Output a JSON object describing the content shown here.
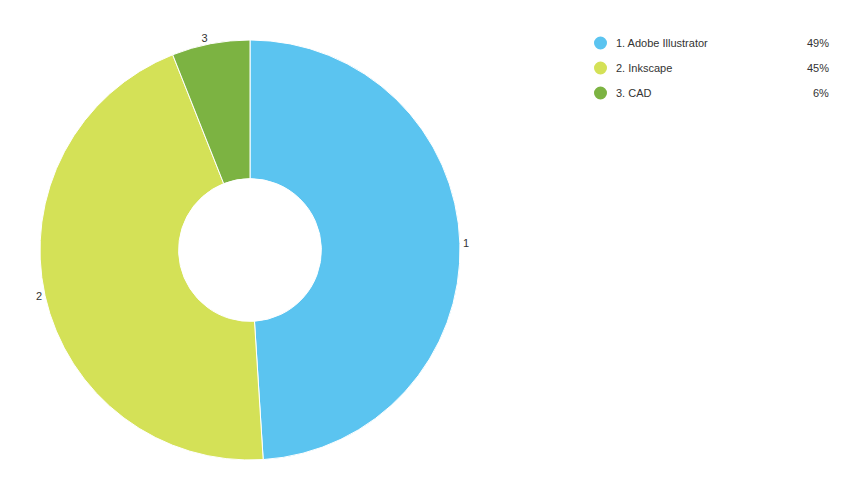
{
  "chart_data": {
    "type": "pie",
    "categories": [
      "1. Adobe Illustrator",
      "2. Inkscape",
      "3. CAD"
    ],
    "values": [
      49,
      45,
      6
    ],
    "value_labels": [
      "49%",
      "45%",
      "6%"
    ],
    "slice_labels": [
      "1",
      "2",
      "3"
    ],
    "colors": [
      "#5bc4f0",
      "#d4e157",
      "#7cb342"
    ],
    "legend": "top-right"
  }
}
